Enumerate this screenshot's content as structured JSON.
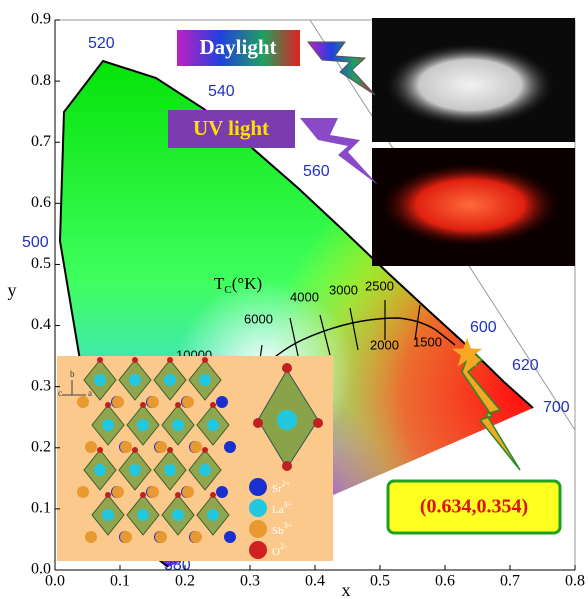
{
  "chart_data": {
    "type": "scatter",
    "xlabel": "x",
    "ylabel": "y",
    "xlim": [
      0,
      0.8
    ],
    "ylim": [
      0,
      0.9
    ],
    "xticks": [
      {
        "value": 0,
        "label": "0.0"
      },
      0.1,
      0.2,
      0.3,
      0.4,
      0.5,
      0.6,
      0.7,
      0.8
    ],
    "yticks": [
      {
        "value": 0,
        "label": "0.0"
      },
      0.1,
      0.2,
      0.3,
      0.4,
      0.5,
      0.6,
      0.7,
      0.8,
      0.9
    ],
    "x": [
      0.634
    ],
    "values": [
      0.354
    ],
    "value_labels": [
      "(0.634,0.354)"
    ],
    "color": "#f7a823",
    "wavelength_labels": [
      "520",
      "540",
      "560",
      "500",
      "600",
      "620",
      "700",
      "380"
    ],
    "cct_title": [
      "T",
      "C",
      "(°K)"
    ],
    "cct_labels": [
      "10000",
      "6000",
      "4000",
      "3000",
      "2500",
      "2000",
      "1500"
    ],
    "inset_labels": [
      "Daylight",
      "UV light"
    ],
    "ions": [
      {
        "symbol": "Sr",
        "charge": "2+",
        "color": "#1a2fd0"
      },
      {
        "symbol": "La",
        "charge": "3+",
        "color": "#22c8e0"
      },
      {
        "symbol": "Sb",
        "charge": "3+",
        "color": "#e89a30"
      },
      {
        "symbol": "O",
        "charge": "2-",
        "color": "#d02020"
      }
    ],
    "axes_labels": [
      "b",
      "c",
      "a"
    ]
  }
}
